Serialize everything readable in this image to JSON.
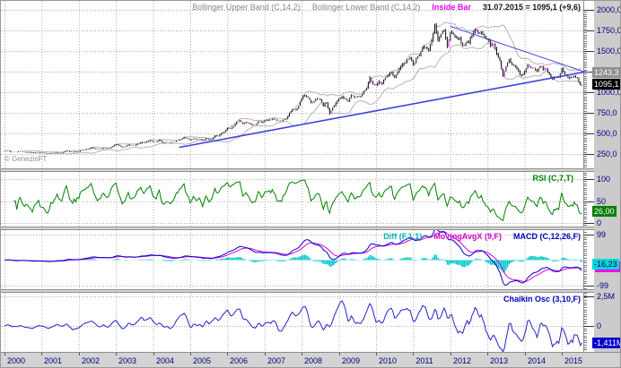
{
  "watermark": "© GenezisFT",
  "colors": {
    "axis_text": "#000080",
    "grid": "#aaaaaa",
    "bar": "#111111",
    "inside_bar": "#cc00cc",
    "bollinger": "#b4b4b4",
    "trendline": "#4040e0",
    "rsi_line": "#008000",
    "macd_line": "#0000cc",
    "signal_line": "#dd00dd",
    "diff_hist": "#00c8c8",
    "chaikin_line": "#2222cc",
    "panel_bg": "#ffffff",
    "axis_strip_bg": "#cbcbcb"
  },
  "time_axis": {
    "years": [
      "2000",
      "2001",
      "2002",
      "2003",
      "2004",
      "2005",
      "2006",
      "2007",
      "2008",
      "2009",
      "2010",
      "2011",
      "2012",
      "2013",
      "2014",
      "2015"
    ]
  },
  "chart_data": [
    {
      "panel": "price",
      "type": "bar",
      "title_labels": [
        {
          "text": "Bollinger Upper Band (C,14,2)",
          "color": "#878787",
          "bold": false
        },
        {
          "text": "Bollinger Lower Band (C,14,2)",
          "color": "#878787",
          "bold": false
        },
        {
          "text": "Inside Bar",
          "color": "#ee00ee",
          "bold": true
        },
        {
          "text": "31.07.2015 = 1095,1 (+9,6)",
          "color": "#151515",
          "bold": true
        }
      ],
      "x_range": [
        2000.0,
        2015.58
      ],
      "ylim": [
        130,
        2090
      ],
      "y_ticks": [
        {
          "v": 2000,
          "label": "2000,0"
        },
        {
          "v": 1750,
          "label": "1750,0"
        },
        {
          "v": 1500,
          "label": "1500,0"
        },
        {
          "v": 1250,
          "label": "1250,0"
        },
        {
          "v": 1000,
          "label": "1000,0"
        },
        {
          "v": 750,
          "label": "750,0"
        },
        {
          "v": 500,
          "label": "500,0"
        },
        {
          "v": 250,
          "label": "250,0"
        }
      ],
      "series": [
        {
          "name": "gold-monthly-close",
          "start_year": 2000,
          "interval": "monthly",
          "values": [
            283,
            293,
            276,
            275,
            272,
            288,
            276,
            274,
            273,
            265,
            269,
            272,
            265,
            261,
            257,
            263,
            267,
            270,
            265,
            272,
            290,
            279,
            274,
            276,
            282,
            296,
            301,
            308,
            326,
            318,
            303,
            310,
            318,
            316,
            319,
            347,
            367,
            350,
            334,
            338,
            361,
            346,
            354,
            375,
            388,
            384,
            398,
            416,
            399,
            395,
            423,
            387,
            393,
            395,
            391,
            400,
            415,
            425,
            453,
            438,
            422,
            435,
            428,
            435,
            414,
            437,
            429,
            433,
            473,
            470,
            495,
            517,
            568,
            556,
            582,
            644,
            653,
            613,
            632,
            623,
            599,
            603,
            646,
            636,
            651,
            665,
            663,
            677,
            659,
            650,
            665,
            672,
            743,
            795,
            783,
            834,
            923,
            971,
            933,
            871,
            885,
            930,
            918,
            833,
            884,
            730,
            814,
            870,
            919,
            952,
            916,
            883,
            975,
            934,
            953,
            955,
            1008,
            1040,
            1175,
            1096,
            1078,
            1118,
            1115,
            1179,
            1215,
            1244,
            1169,
            1246,
            1307,
            1346,
            1383,
            1421,
            1327,
            1411,
            1439,
            1556,
            1536,
            1502,
            1628,
            1813,
            1620,
            1722,
            1746,
            1566,
            1744,
            1711,
            1662,
            1651,
            1558,
            1604,
            1614,
            1692,
            1776,
            1719,
            1726,
            1664,
            1661,
            1588,
            1598,
            1469,
            1394,
            1192,
            1323,
            1396,
            1326,
            1324,
            1253,
            1205,
            1251,
            1326,
            1291,
            1288,
            1250,
            1327,
            1285,
            1287,
            1216,
            1173,
            1175,
            1184,
            1283,
            1214,
            1183,
            1180,
            1191,
            1172,
            1095
          ]
        }
      ],
      "overlays": {
        "bollinger": {
          "period": 14,
          "stddev": 2
        },
        "trendlines": [
          {
            "name": "rising-support",
            "from": [
              2004.7,
              330
            ],
            "to": [
              2015.66,
              1250
            ]
          },
          {
            "name": "falling-resistance",
            "from": [
              2012.0,
              1800
            ],
            "to": [
              2015.66,
              1240
            ]
          }
        ]
      },
      "badges": [
        {
          "name": "trendline-value",
          "text": "1243,3",
          "v": 1243.3,
          "bg": "#8f8f8f",
          "fg": "#ffffff"
        },
        {
          "name": "last-price",
          "text": "1095,1",
          "v": 1095.1,
          "bg": "#000000",
          "fg": "#ffffff"
        }
      ],
      "last_quote": {
        "date": "31.07.2015",
        "close": "1095,1",
        "change": "+9,6"
      }
    },
    {
      "panel": "rsi",
      "type": "line",
      "label": {
        "text": "RSI (C,7,T)",
        "color": "#008000"
      },
      "params": {
        "period": 7
      },
      "ylim": [
        -12,
        116
      ],
      "y_ticks": [
        {
          "v": 100,
          "label": "100"
        },
        {
          "v": 50,
          "label": "50"
        },
        {
          "v": 0,
          "label": "0"
        }
      ],
      "badges": [
        {
          "name": "rsi-value",
          "text": "26,00",
          "v": 26.0,
          "bg": "#008000",
          "fg": "#ffffff"
        }
      ]
    },
    {
      "panel": "macd",
      "type": "line+histogram",
      "labels": [
        {
          "text": "Diff (F,1,1)",
          "color": "#00b2b2"
        },
        {
          "text": "MovingAvgX (9,F)",
          "color": "#cc00cc"
        },
        {
          "text": "MACD (C,12,26,F)",
          "color": "#0000bb"
        }
      ],
      "params": {
        "fast": 12,
        "slow": 26,
        "signal": 9
      },
      "ylim": [
        -117,
        116
      ],
      "y_ticks": [
        {
          "v": 99,
          "label": "99"
        },
        {
          "v": -99,
          "label": "-99"
        }
      ],
      "badges": [
        {
          "name": "diff-value",
          "text": "-16,23",
          "v": -16.23,
          "bg": "#00d8d8",
          "fg": "#000050",
          "shadow_bg": "#ee00ee"
        }
      ]
    },
    {
      "panel": "chaikin",
      "type": "line",
      "label": {
        "text": "Chaikin Osc (3,10,F)",
        "color": "#0000bb"
      },
      "params": {
        "fast": 3,
        "slow": 10
      },
      "ylim_millions": [
        -2.2,
        2.8
      ],
      "y_ticks": [
        {
          "v": 2.5,
          "label": "2,5M"
        },
        {
          "v": 0,
          "label": "0"
        }
      ],
      "badges": [
        {
          "name": "chaikin-value",
          "text": "-1,411M",
          "v": -1.411,
          "bg": "#0000cc",
          "fg": "#ffffff"
        }
      ]
    }
  ]
}
